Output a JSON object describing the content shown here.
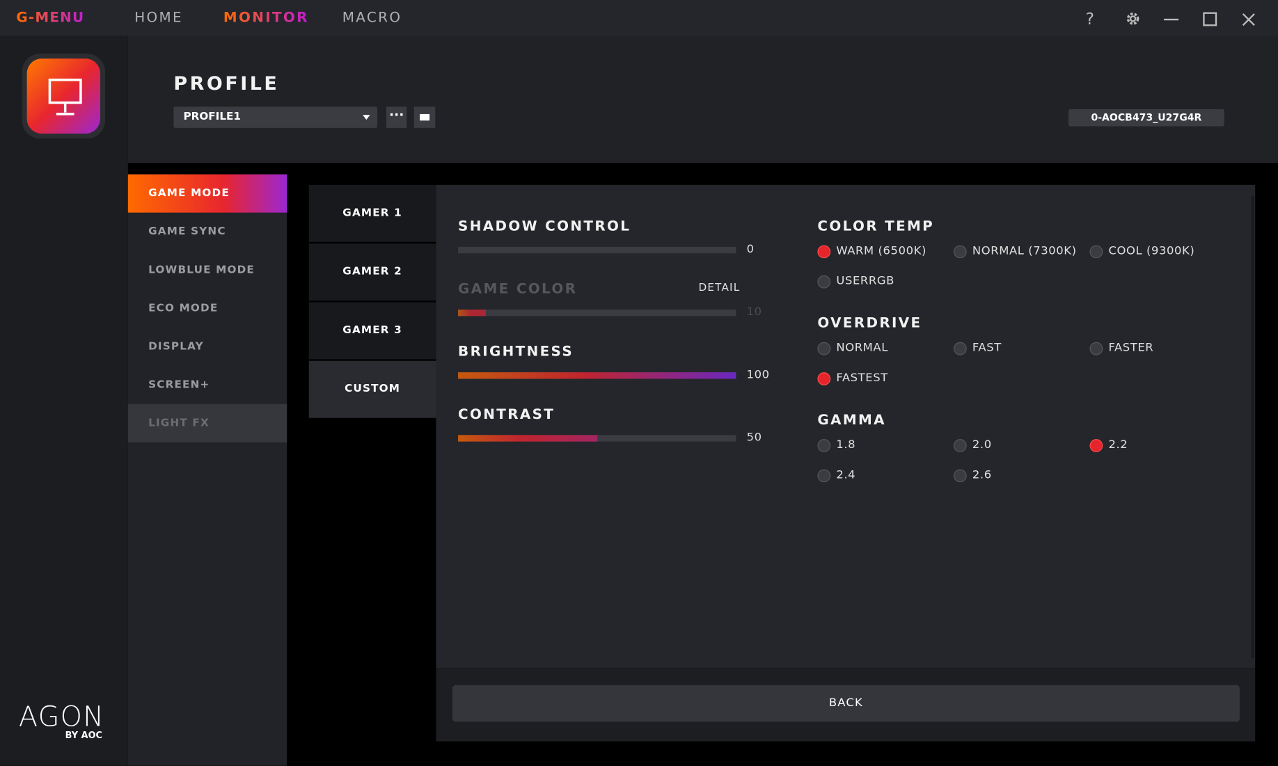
{
  "app": {
    "brand": "G-MENU",
    "nav": [
      "HOME",
      "MONITOR",
      "MACRO"
    ],
    "active_nav": 1
  },
  "logo": {
    "name": "AGON",
    "by": "BY AOC"
  },
  "profile": {
    "title": "PROFILE",
    "selected": "PROFILE1",
    "device": "0-AOCB473_U27G4R"
  },
  "menu": {
    "items": [
      "GAME MODE",
      "GAME SYNC",
      "LOWBLUE MODE",
      "ECO MODE",
      "DISPLAY",
      "SCREEN+",
      "LIGHT FX"
    ],
    "active": 0
  },
  "tabs": {
    "items": [
      "GAMER 1",
      "GAMER 2",
      "GAMER 3",
      "CUSTOM"
    ],
    "active": 3
  },
  "sliders": [
    {
      "label": "SHADOW CONTROL",
      "value": 0
    },
    {
      "label": "GAME COLOR",
      "value": 10,
      "disabled": true,
      "detail": "DETAIL"
    },
    {
      "label": "BRIGHTNESS",
      "value": 100
    },
    {
      "label": "CONTRAST",
      "value": 50
    }
  ],
  "groups": [
    {
      "title": "COLOR TEMP",
      "options": [
        {
          "label": "WARM (6500K)",
          "selected": true
        },
        {
          "label": "NORMAL (7300K)"
        },
        {
          "label": "COOL (9300K)"
        },
        {
          "label": "USERRGB"
        }
      ]
    },
    {
      "title": "OVERDRIVE",
      "options": [
        {
          "label": "NORMAL"
        },
        {
          "label": "FAST"
        },
        {
          "label": "FASTER"
        },
        {
          "label": "FASTEST",
          "selected": true
        }
      ]
    },
    {
      "title": "GAMMA",
      "options": [
        {
          "label": "1.8"
        },
        {
          "label": "2.0"
        },
        {
          "label": "2.2",
          "selected": true
        },
        {
          "label": "2.4"
        },
        {
          "label": "2.6"
        }
      ]
    }
  ],
  "back": "BACK"
}
